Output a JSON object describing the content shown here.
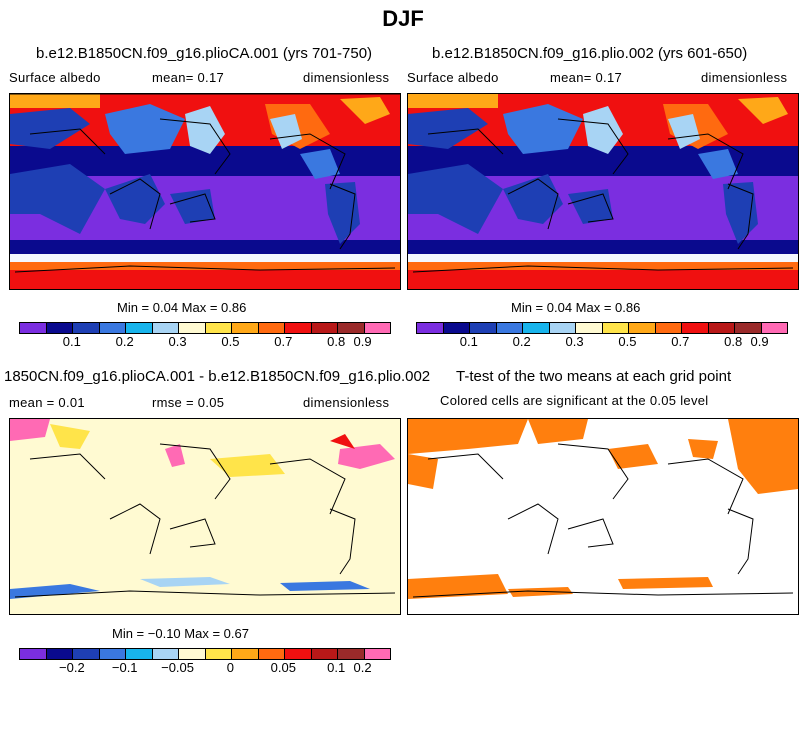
{
  "title": "DJF",
  "panels": [
    {
      "title": "b.e12.B1850CN.f09_g16.plioCA.001 (yrs 701-750)",
      "left_label": "Surface albedo",
      "mid_label": "mean=   0.17",
      "right_label": "dimensionless",
      "minmax": "Min =   0.04 Max =   0.86"
    },
    {
      "title": "b.e12.B1850CN.f09_g16.plio.002 (yrs 601-650)",
      "left_label": "Surface albedo",
      "mid_label": "mean=   0.17",
      "right_label": "dimensionless",
      "minmax": "Min =   0.04 Max =   0.86"
    },
    {
      "title": "1850CN.f09_g16.plioCA.001 - b.e12.B1850CN.f09_g16.plio.002",
      "left_label": "mean =   0.01",
      "mid_label": "rmse =   0.05",
      "right_label": "dimensionless",
      "minmax": "Min =  −0.10 Max =   0.67"
    },
    {
      "title": "T-test of the two means at each grid point",
      "left_label": "Colored cells are significant at the 0.05 level",
      "mid_label": "",
      "right_label": ""
    }
  ],
  "colorbar_abs": {
    "colors": [
      "#7b2ee0",
      "#0a0a8e",
      "#1e3fb4",
      "#3a78e0",
      "#18b4ec",
      "#a8d4f4",
      "#fffad2",
      "#ffe44a",
      "#ffa818",
      "#ff6a10",
      "#f01010",
      "#b81818",
      "#9a2a2a",
      "#ff6ab4"
    ],
    "labels": [
      "0.1",
      "0.2",
      "0.3",
      "0.5",
      "0.7",
      "0.8",
      "0.9"
    ]
  },
  "colorbar_diff": {
    "colors": [
      "#7b2ee0",
      "#0a0a8e",
      "#1e3fb4",
      "#3a78e0",
      "#18b4ec",
      "#a8d4f4",
      "#fffad2",
      "#ffe44a",
      "#ffa818",
      "#ff6a10",
      "#f01010",
      "#b81818",
      "#9a2a2a",
      "#ff6ab4"
    ],
    "labels": [
      "−0.2",
      "−0.1",
      "−0.05",
      "0",
      "0.05",
      "0.1",
      "0.2"
    ]
  }
}
